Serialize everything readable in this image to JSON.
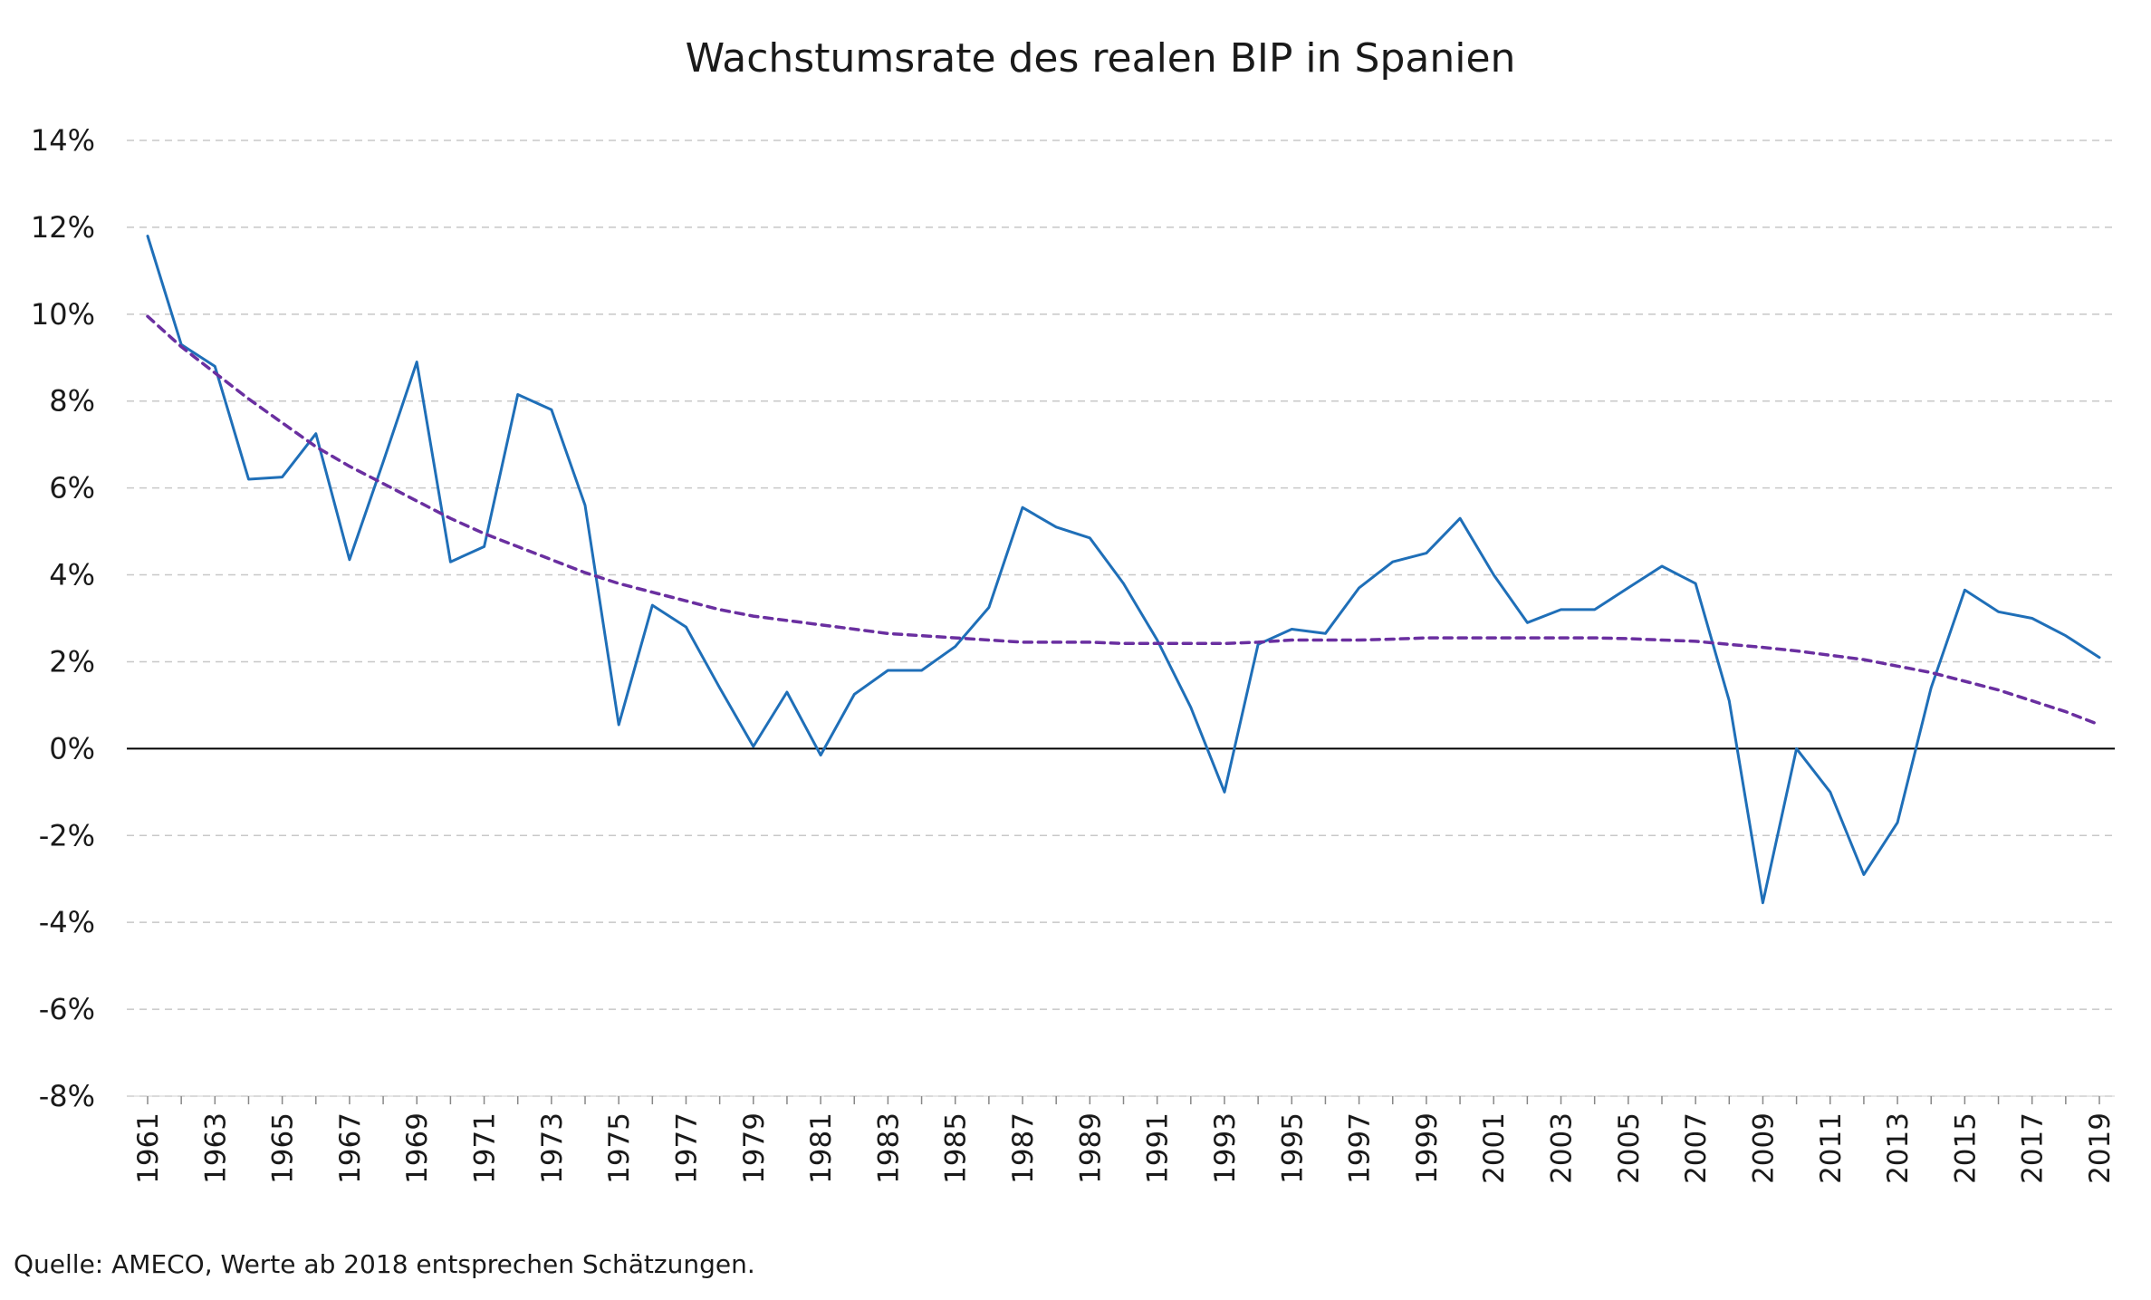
{
  "chart_data": {
    "type": "line",
    "title": "Wachstumsrate des realen BIP in Spanien",
    "source": "Quelle: AMECO, Werte ab 2018 entsprechen Schätzungen.",
    "xlabel": "",
    "ylabel": "",
    "ylim": [
      -8,
      14
    ],
    "y_ticks": [
      "14%",
      "12%",
      "10%",
      "8%",
      "6%",
      "4%",
      "2%",
      "0%",
      "-2%",
      "-4%",
      "-6%",
      "-8%"
    ],
    "y_tick_values": [
      14,
      12,
      10,
      8,
      6,
      4,
      2,
      0,
      -2,
      -4,
      -6,
      -8
    ],
    "x_tick_labels": [
      "1961",
      "1963",
      "1965",
      "1967",
      "1969",
      "1971",
      "1973",
      "1975",
      "1977",
      "1979",
      "1981",
      "1983",
      "1985",
      "1987",
      "1989",
      "1991",
      "1993",
      "1995",
      "1997",
      "1999",
      "2001",
      "2003",
      "2005",
      "2007",
      "2009",
      "2011",
      "2013",
      "2015",
      "2017",
      "2019"
    ],
    "grid": true,
    "legend": "none",
    "x": [
      1961,
      1962,
      1963,
      1964,
      1965,
      1966,
      1967,
      1968,
      1969,
      1970,
      1971,
      1972,
      1973,
      1974,
      1975,
      1976,
      1977,
      1978,
      1979,
      1980,
      1981,
      1982,
      1983,
      1984,
      1985,
      1986,
      1987,
      1988,
      1989,
      1990,
      1991,
      1992,
      1993,
      1994,
      1995,
      1996,
      1997,
      1998,
      1999,
      2000,
      2001,
      2002,
      2003,
      2004,
      2005,
      2006,
      2007,
      2008,
      2009,
      2010,
      2011,
      2012,
      2013,
      2014,
      2015,
      2016,
      2017,
      2018,
      2019
    ],
    "series": [
      {
        "style": "solid",
        "color": "#1f6fb8",
        "values": [
          11.8,
          9.3,
          8.8,
          6.2,
          6.25,
          7.25,
          4.35,
          6.6,
          8.9,
          4.3,
          4.65,
          8.15,
          7.8,
          5.6,
          0.55,
          3.3,
          2.8,
          1.4,
          0.05,
          1.3,
          -0.15,
          1.25,
          1.8,
          1.8,
          2.35,
          3.25,
          5.55,
          5.1,
          4.85,
          3.8,
          2.5,
          0.95,
          -1.0,
          2.4,
          2.75,
          2.65,
          3.7,
          4.3,
          4.5,
          5.3,
          4.0,
          2.9,
          3.2,
          3.2,
          3.7,
          4.2,
          3.8,
          1.1,
          -3.55,
          0.0,
          -1.0,
          -2.9,
          -1.7,
          1.4,
          3.65,
          3.15,
          3.0,
          2.6,
          2.1
        ]
      },
      {
        "style": "dashed",
        "color": "#6a2fa0",
        "values": [
          9.95,
          9.25,
          8.65,
          8.05,
          7.5,
          6.95,
          6.5,
          6.1,
          5.7,
          5.3,
          4.95,
          4.65,
          4.35,
          4.05,
          3.8,
          3.6,
          3.4,
          3.2,
          3.05,
          2.95,
          2.85,
          2.75,
          2.65,
          2.6,
          2.55,
          2.5,
          2.45,
          2.45,
          2.45,
          2.42,
          2.42,
          2.42,
          2.42,
          2.45,
          2.5,
          2.5,
          2.5,
          2.52,
          2.55,
          2.55,
          2.55,
          2.55,
          2.55,
          2.55,
          2.53,
          2.5,
          2.47,
          2.4,
          2.33,
          2.25,
          2.15,
          2.05,
          1.9,
          1.75,
          1.55,
          1.35,
          1.1,
          0.85,
          0.55
        ]
      }
    ]
  }
}
